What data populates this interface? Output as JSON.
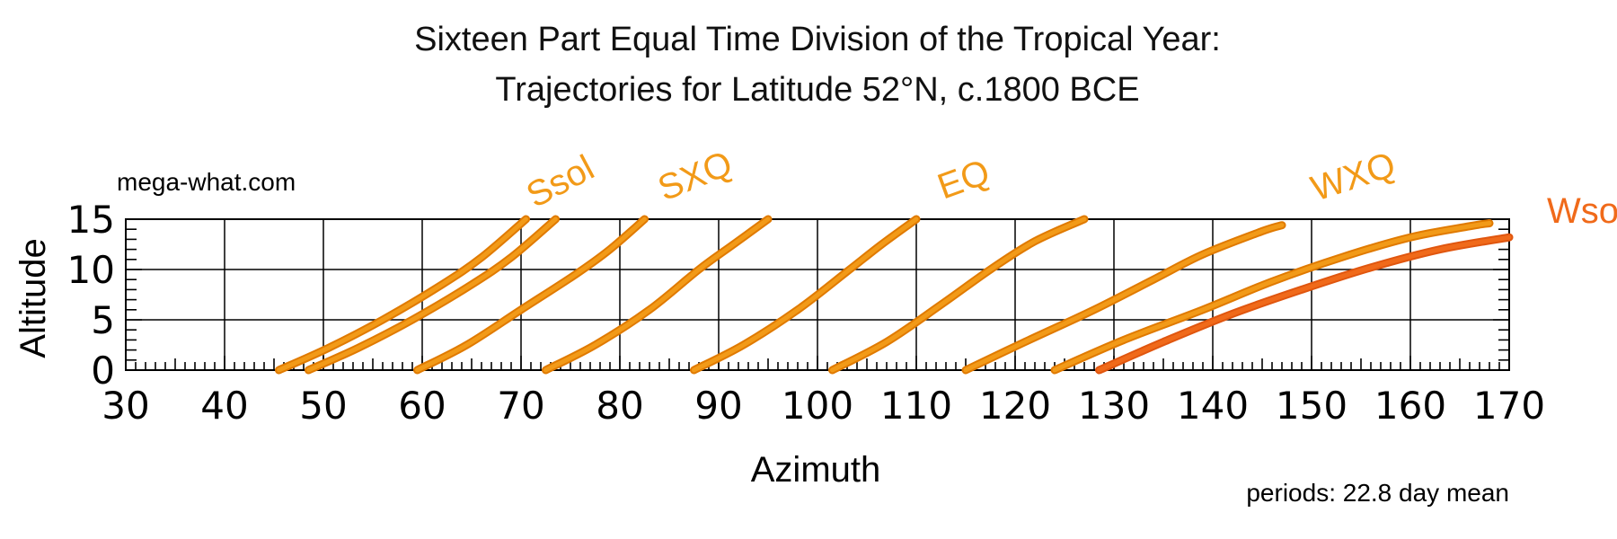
{
  "chart_data": {
    "type": "line",
    "title": "Sixteen Part Equal Time Division of the Tropical Year:",
    "subtitle": "Trajectories for Latitude 52°N, c.1800 BCE",
    "website": "mega-what.com",
    "note": "periods: 22.8 day mean",
    "xlabel": "Azimuth",
    "ylabel": "Altitude",
    "xlim": [
      30,
      170
    ],
    "ylim": [
      0,
      15
    ],
    "xticks": [
      "30",
      "40",
      "50",
      "60",
      "70",
      "80",
      "90",
      "100",
      "110",
      "120",
      "130",
      "140",
      "150",
      "160",
      "170"
    ],
    "yticks": [
      "0",
      "5",
      "10",
      "15"
    ],
    "grid": true,
    "colors": {
      "trajectory": "#f29a18",
      "trajectory_edge": "#e07a00",
      "wsol": "#f06a1a",
      "grid": "#000000"
    },
    "series": [
      {
        "label": "Ssol",
        "color": "#f29a18",
        "points": [
          [
            45.5,
            0
          ],
          [
            50.5,
            2.2
          ],
          [
            56,
            5
          ],
          [
            62,
            8.5
          ],
          [
            66,
            11.2
          ],
          [
            70.5,
            15
          ]
        ]
      },
      {
        "points": [
          [
            48.5,
            0
          ],
          [
            53.5,
            2.2
          ],
          [
            59,
            5
          ],
          [
            65,
            8.5
          ],
          [
            69,
            11.2
          ],
          [
            73.5,
            15
          ]
        ]
      },
      {
        "label": "SXQ",
        "color": "#f29a18",
        "points": [
          [
            59.5,
            0
          ],
          [
            64.5,
            2.5
          ],
          [
            70,
            6
          ],
          [
            75.5,
            9.5
          ],
          [
            79,
            12
          ],
          [
            82.5,
            15
          ]
        ]
      },
      {
        "points": [
          [
            72.5,
            0
          ],
          [
            77.5,
            2.5
          ],
          [
            83,
            6
          ],
          [
            88,
            10
          ],
          [
            91.5,
            12.5
          ],
          [
            95,
            15
          ]
        ]
      },
      {
        "label": "EQ",
        "color": "#f29a18",
        "points": [
          [
            87.5,
            0
          ],
          [
            92.5,
            2.5
          ],
          [
            98,
            6
          ],
          [
            103,
            9.8
          ],
          [
            106.5,
            12.5
          ],
          [
            110,
            15
          ]
        ]
      },
      {
        "points": [
          [
            101.5,
            0
          ],
          [
            107,
            2.8
          ],
          [
            112.5,
            6.5
          ],
          [
            117.5,
            10
          ],
          [
            122,
            12.8
          ],
          [
            127,
            15
          ]
        ]
      },
      {
        "label": "WXQ",
        "color": "#f29a18",
        "points": [
          [
            115,
            0
          ],
          [
            121,
            2.8
          ],
          [
            128,
            6
          ],
          [
            134,
            9
          ],
          [
            139,
            11.5
          ],
          [
            145,
            13.8
          ],
          [
            147,
            14.4
          ]
        ]
      },
      {
        "points": [
          [
            124,
            0
          ],
          [
            131,
            3
          ],
          [
            139,
            6
          ],
          [
            146,
            8.8
          ],
          [
            153,
            11.2
          ],
          [
            160,
            13.2
          ],
          [
            166,
            14.3
          ],
          [
            168,
            14.6
          ]
        ]
      },
      {
        "label": "Wsol",
        "color": "#f06a1a",
        "points": [
          [
            128.5,
            0
          ],
          [
            135,
            2.8
          ],
          [
            142,
            5.6
          ],
          [
            149,
            8
          ],
          [
            156,
            10.2
          ],
          [
            163,
            12
          ],
          [
            170,
            13.2
          ]
        ]
      }
    ]
  }
}
